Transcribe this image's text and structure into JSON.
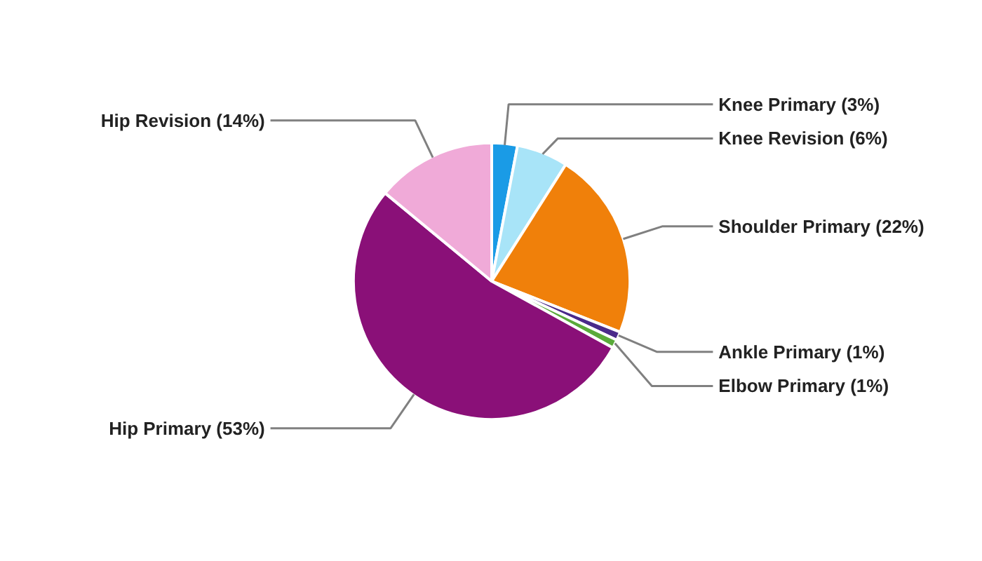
{
  "chart_data": {
    "type": "pie",
    "categories": [
      "Knee Primary",
      "Knee Revision",
      "Shoulder Primary",
      "Ankle Primary",
      "Elbow Primary",
      "Hip Primary",
      "Hip Revision"
    ],
    "values": [
      3,
      6,
      22,
      1,
      1,
      53,
      14
    ],
    "colors": [
      "#1a9be6",
      "#a8e4f8",
      "#f0800a",
      "#4a2a8a",
      "#5aaa3a",
      "#8a1078",
      "#f0aad8"
    ],
    "value_labels": [
      "(3%)",
      "(6%)",
      "(22%)",
      "(1%)",
      "(1%)",
      "(53%)",
      "(14%)"
    ]
  }
}
